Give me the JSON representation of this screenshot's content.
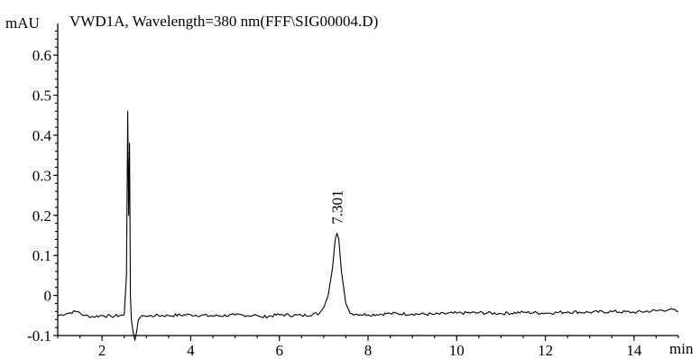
{
  "chart_data": {
    "type": "line",
    "title": "VWD1A, Wavelength=380 nm(FFF\\SIG00004.D)",
    "ylabel": "mAU",
    "xlabel": "min",
    "xlim": [
      1,
      15
    ],
    "ylim": [
      -0.1,
      0.67
    ],
    "x_ticks": [
      2,
      4,
      6,
      8,
      10,
      12,
      14
    ],
    "y_ticks": [
      -0.1,
      0,
      0.1,
      0.2,
      0.3,
      0.4,
      0.5,
      0.6
    ],
    "y_tick_labels": [
      "-0.1",
      "0",
      "0.1",
      "0.2",
      "0.3",
      "0.4",
      "0.5",
      "0.6"
    ],
    "grid": false,
    "series": [
      {
        "x": [
          1.0,
          1.2,
          1.4,
          1.45,
          1.6,
          1.8,
          2.0,
          2.2,
          2.4,
          2.5,
          2.55,
          2.58,
          2.6,
          2.62,
          2.64,
          2.66,
          2.7,
          2.74,
          2.78,
          2.82,
          2.86,
          2.9,
          3.0,
          3.2,
          3.5,
          4.0,
          4.5,
          5.0,
          5.5,
          5.6,
          6.0,
          6.5,
          6.9,
          7.0,
          7.1,
          7.2,
          7.26,
          7.3,
          7.34,
          7.4,
          7.5,
          7.6,
          8.0,
          8.5,
          9.0,
          9.5,
          10.0,
          10.5,
          11.0,
          11.5,
          12.0,
          12.5,
          13.0,
          13.5,
          14.0,
          14.5,
          14.8,
          15.0
        ],
        "y": [
          -0.05,
          -0.045,
          -0.04,
          -0.04,
          -0.05,
          -0.053,
          -0.05,
          -0.052,
          -0.05,
          -0.048,
          0.05,
          0.46,
          0.2,
          0.38,
          0.0,
          -0.06,
          -0.09,
          -0.112,
          -0.09,
          -0.06,
          -0.055,
          -0.05,
          -0.052,
          -0.05,
          -0.05,
          -0.048,
          -0.051,
          -0.049,
          -0.05,
          -0.054,
          -0.048,
          -0.05,
          -0.045,
          -0.03,
          0.0,
          0.07,
          0.14,
          0.155,
          0.14,
          0.06,
          -0.02,
          -0.045,
          -0.048,
          -0.045,
          -0.046,
          -0.047,
          -0.044,
          -0.043,
          -0.045,
          -0.042,
          -0.044,
          -0.041,
          -0.042,
          -0.04,
          -0.042,
          -0.038,
          -0.035,
          -0.04
        ]
      }
    ],
    "annotations": [
      {
        "text": "7.301",
        "x": 7.301,
        "y": 0.155
      }
    ]
  }
}
